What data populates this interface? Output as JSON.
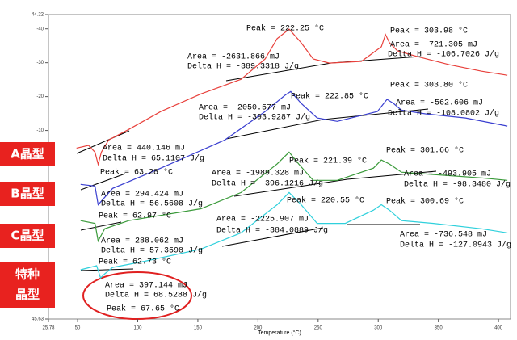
{
  "chart_data": {
    "type": "line",
    "x_label": "Temperature (°C)",
    "xlim": [
      25.78,
      410
    ],
    "ylim": [
      -45.63,
      44.22
    ],
    "xticks": [
      25.78,
      50,
      100,
      150,
      200,
      250,
      300,
      350,
      400
    ],
    "yticks": [
      {
        "value": 44.22,
        "label": "44.22"
      },
      {
        "value": 40,
        "label": "-40"
      },
      {
        "value": 30,
        "label": "-30"
      },
      {
        "value": 20,
        "label": "-20"
      },
      {
        "value": 10,
        "label": "-10"
      },
      {
        "value": -45.63,
        "label": "45.63"
      }
    ],
    "series": [
      {
        "name": "A晶型",
        "color": "#e8413c",
        "x": [
          49.1,
          59.1,
          64.5,
          67.1,
          69.8,
          75.8,
          92.5,
          119.2,
          152.5,
          185.9,
          205.9,
          215.9,
          225.9,
          235.9,
          245.9,
          259.3,
          286.0,
          302.6,
          306.0,
          309.3,
          316.0,
          332.6,
          359.3,
          386.0,
          407.4
        ],
        "values": [
          4.8,
          5.6,
          3.6,
          0.0,
          3.6,
          7.2,
          10.3,
          15.6,
          20.8,
          25.1,
          31.1,
          37.1,
          39.9,
          35.9,
          31.1,
          29.9,
          30.4,
          34.7,
          38.3,
          35.9,
          33.5,
          31.8,
          29.4,
          27.5,
          26.3
        ]
      },
      {
        "name": "B晶型",
        "color": "#3a3fd0",
        "x": [
          52.5,
          64.5,
          67.1,
          79.1,
          119.2,
          172.5,
          205.9,
          222.5,
          227.2,
          235.9,
          249.2,
          265.9,
          299.3,
          307.3,
          312.6,
          319.3,
          339.3,
          372.6,
          407.4
        ],
        "values": [
          -5.9,
          -6.4,
          -11.9,
          -7.1,
          -1.1,
          7.2,
          15.6,
          20.4,
          21.5,
          18.0,
          13.7,
          12.7,
          15.6,
          19.2,
          18.0,
          16.0,
          14.9,
          13.7,
          11.3
        ]
      },
      {
        "name": "C晶型",
        "color": "#3a9a3a",
        "x": [
          52.5,
          64.5,
          67.1,
          72.5,
          92.5,
          152.5,
          185.9,
          215.9,
          225.9,
          233.9,
          245.9,
          265.9,
          296.0,
          302.6,
          309.3,
          319.3,
          346.0,
          386.0,
          407.4
        ],
        "values": [
          -16.6,
          -17.4,
          -22.6,
          -19.0,
          -16.6,
          -13.1,
          -8.3,
          0.1,
          3.6,
          0.1,
          -4.7,
          -4.7,
          -1.1,
          1.3,
          0.1,
          -2.3,
          -3.0,
          -4.0,
          -4.7
        ]
      },
      {
        "name": "特种晶型",
        "color": "#2fd0dc",
        "x": [
          52.5,
          65.8,
          69.1,
          72.5,
          79.1,
          105.8,
          152.5,
          185.9,
          215.9,
          225.9,
          235.9,
          249.2,
          272.6,
          296.0,
          302.6,
          309.3,
          319.3,
          346.0,
          386.0,
          407.4
        ],
        "values": [
          -31.1,
          -29.9,
          -33.5,
          -32.3,
          -30.4,
          -28.6,
          -25.0,
          -20.2,
          -11.9,
          -8.3,
          -11.9,
          -17.4,
          -17.4,
          -13.5,
          -11.9,
          -13.5,
          -16.6,
          -17.4,
          -19.0,
          -20.2
        ]
      }
    ],
    "annotations": [
      "Peak = 222.25 °C",
      "Peak = 303.98 °C",
      "Area = -2631.866 mJ",
      "Delta H = -389.3318 J/g",
      "Area = -721.305 mJ",
      "Delta H = -106.7026 J/g",
      "Peak = 222.85 °C",
      "Peak = 303.80 °C",
      "Area = -2050.577 mJ",
      "Delta H = -393.9287 J/g",
      "Area = -562.606 mJ",
      "Delta H = -108.0802 J/g",
      "Area = 440.146 mJ",
      "Delta H = 65.1107 J/g",
      "Peak = 63.28 °C",
      "Peak = 221.39 °C",
      "Peak = 301.66 °C",
      "Area = -1989.328 mJ",
      "Delta H = -396.1216 J/g",
      "Area = -493.905 mJ",
      "Delta H = -98.3480 J/g",
      "Area = 294.424 mJ",
      "Delta H = 56.5608 J/g",
      "Peak = 62.97 °C",
      "Peak = 220.55 °C",
      "Peak = 300.69 °C",
      "Area = -2225.907 mJ",
      "Delta H = -384.0889 J/g",
      "Area = -736.548 mJ",
      "Delta H = -127.0943 J/g",
      "Area = 288.062 mJ",
      "Delta H = 57.3598 J/g",
      "Peak = 62.73 °C",
      "Area = 397.144 mJ",
      "Delta H = 68.5288 J/g",
      "Peak = 67.65 °C"
    ],
    "tags": [
      "A晶型",
      "B晶型",
      "C晶型",
      "特种",
      "晶型"
    ]
  }
}
